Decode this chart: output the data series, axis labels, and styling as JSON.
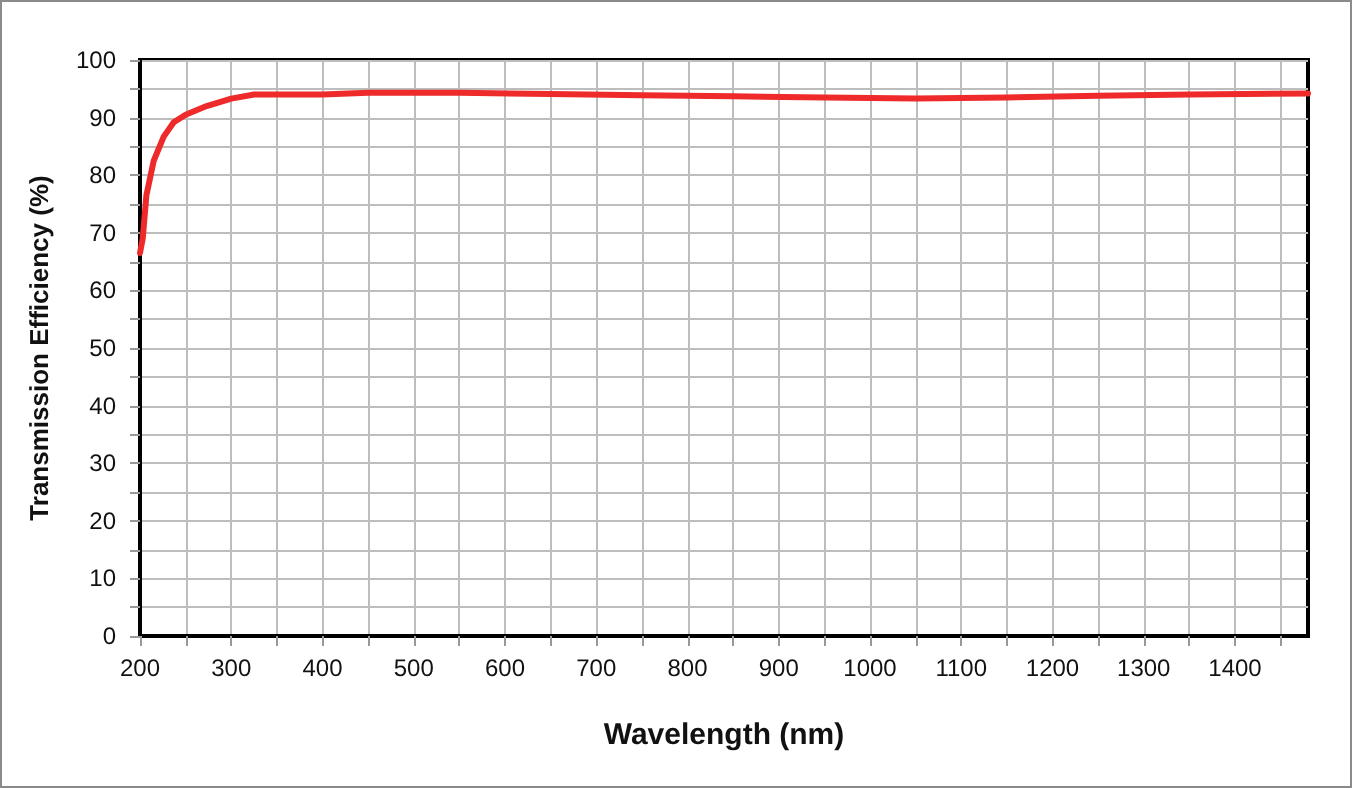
{
  "chart_data": {
    "type": "line",
    "xlabel": "Wavelength (nm)",
    "ylabel": "Transmission Efficiency (%)",
    "x": [
      200,
      203,
      207,
      215,
      226,
      237,
      250,
      273,
      300,
      325,
      400,
      450,
      550,
      650,
      750,
      850,
      950,
      1050,
      1150,
      1250,
      1350,
      1480
    ],
    "series": [
      {
        "color": "#ee2a2a",
        "values": [
          66.5,
          69,
          76.5,
          82.5,
          86.7,
          89.2,
          90.5,
          92,
          93.3,
          94,
          94,
          94.3,
          94.3,
          94.1,
          93.9,
          93.7,
          93.5,
          93.3,
          93.5,
          93.8,
          94,
          94.2
        ]
      }
    ],
    "xlim": [
      200,
      1480
    ],
    "xticks": [
      200,
      {
        "value": 250,
        "label": null
      },
      300,
      {
        "value": 350,
        "label": null
      },
      400,
      {
        "value": 450,
        "label": null
      },
      500,
      {
        "value": 550,
        "label": null
      },
      600,
      {
        "value": 650,
        "label": null
      },
      700,
      {
        "value": 750,
        "label": null
      },
      800,
      {
        "value": 850,
        "label": null
      },
      900,
      {
        "value": 950,
        "label": null
      },
      1000,
      {
        "value": 1050,
        "label": null
      },
      1100,
      {
        "value": 1150,
        "label": null
      },
      1200,
      {
        "value": 1250,
        "label": null
      },
      1300,
      {
        "value": 1350,
        "label": null
      },
      1400,
      {
        "value": 1450,
        "label": null
      }
    ],
    "ylim": [
      0,
      100
    ],
    "yticks": [
      0,
      {
        "value": 5,
        "label": null
      },
      10,
      {
        "value": 15,
        "label": null
      },
      20,
      {
        "value": 25,
        "label": null
      },
      30,
      {
        "value": 35,
        "label": null
      },
      40,
      {
        "value": 45,
        "label": null
      },
      50,
      {
        "value": 55,
        "label": null
      },
      60,
      {
        "value": 65,
        "label": null
      },
      70,
      {
        "value": 75,
        "label": null
      },
      80,
      {
        "value": 85,
        "label": null
      },
      90,
      {
        "value": 95,
        "label": null
      },
      100
    ],
    "grid": true,
    "marker": "none",
    "line_style": "solid"
  }
}
